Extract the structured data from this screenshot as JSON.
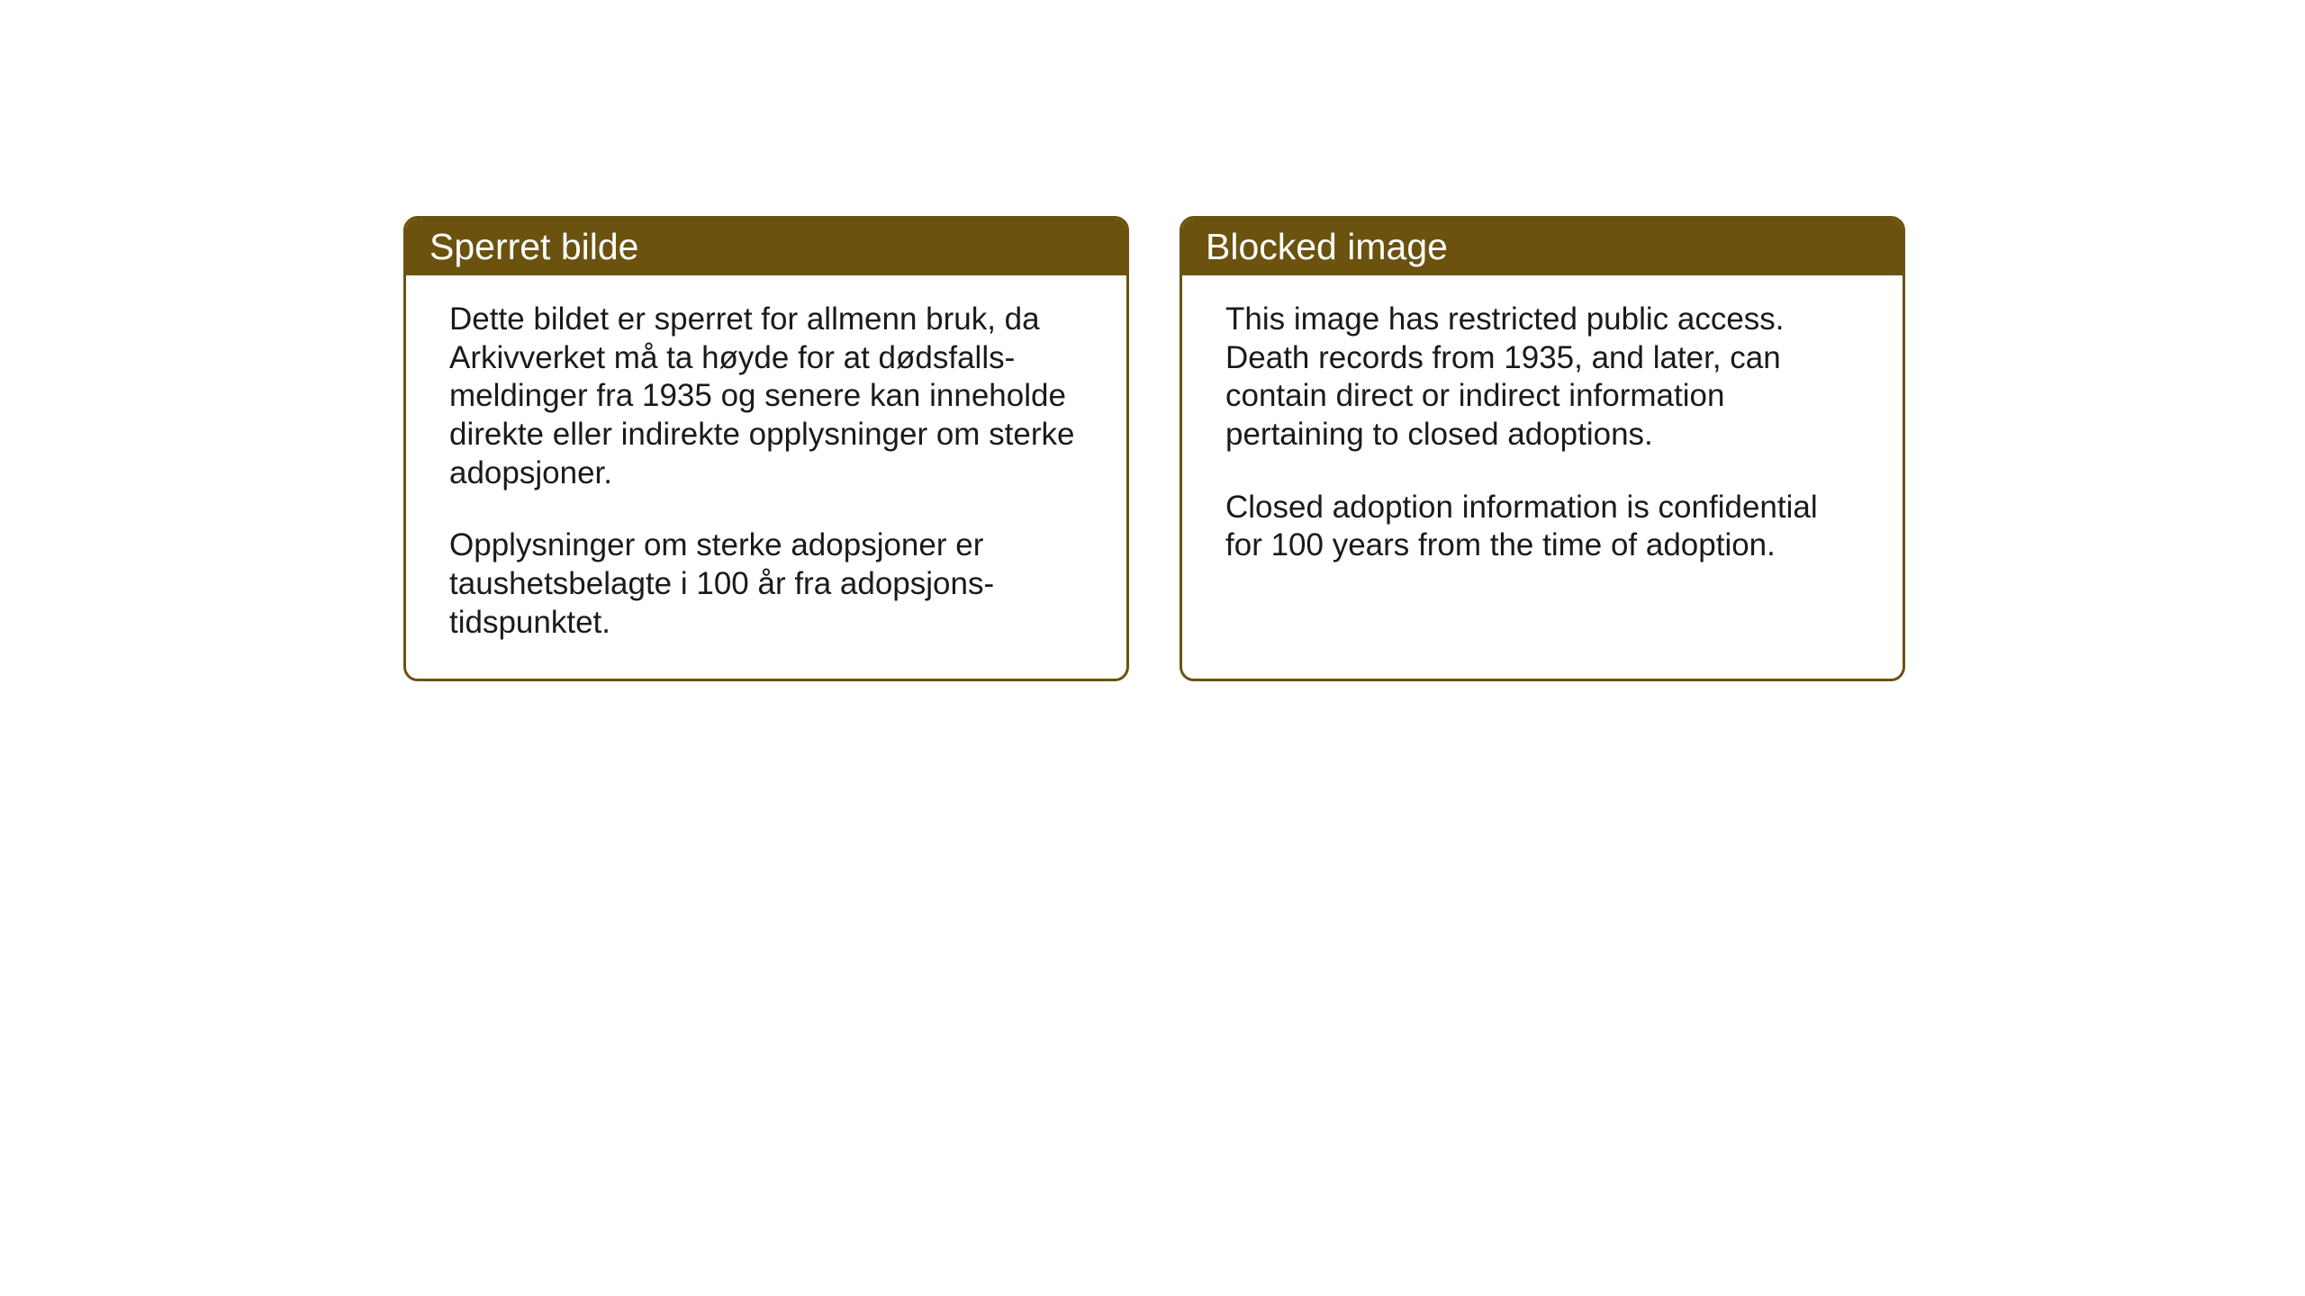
{
  "layout": {
    "background_color": "#ffffff",
    "box_border_color": "#6b520f",
    "box_border_width": 3,
    "box_border_radius": 16,
    "header_background": "#6b520f",
    "header_text_color": "#ffffff",
    "body_text_color": "#1a1a1a",
    "header_fontsize": 41,
    "body_fontsize": 35
  },
  "left_box": {
    "title": "Sperret bilde",
    "paragraph1": "Dette bildet er sperret for allmenn bruk, da Arkivverket må ta høyde for at dødsfalls-meldinger fra 1935 og senere kan inneholde direkte eller indirekte opplysninger om sterke adopsjoner.",
    "paragraph2": "Opplysninger om sterke adopsjoner er taushetsbelagte i 100 år fra adopsjons-tidspunktet."
  },
  "right_box": {
    "title": "Blocked image",
    "paragraph1": "This image has restricted public access. Death records from 1935, and later, can contain direct or indirect information pertaining to closed adoptions.",
    "paragraph2": "Closed adoption information is confidential for 100 years from the time of adoption."
  }
}
